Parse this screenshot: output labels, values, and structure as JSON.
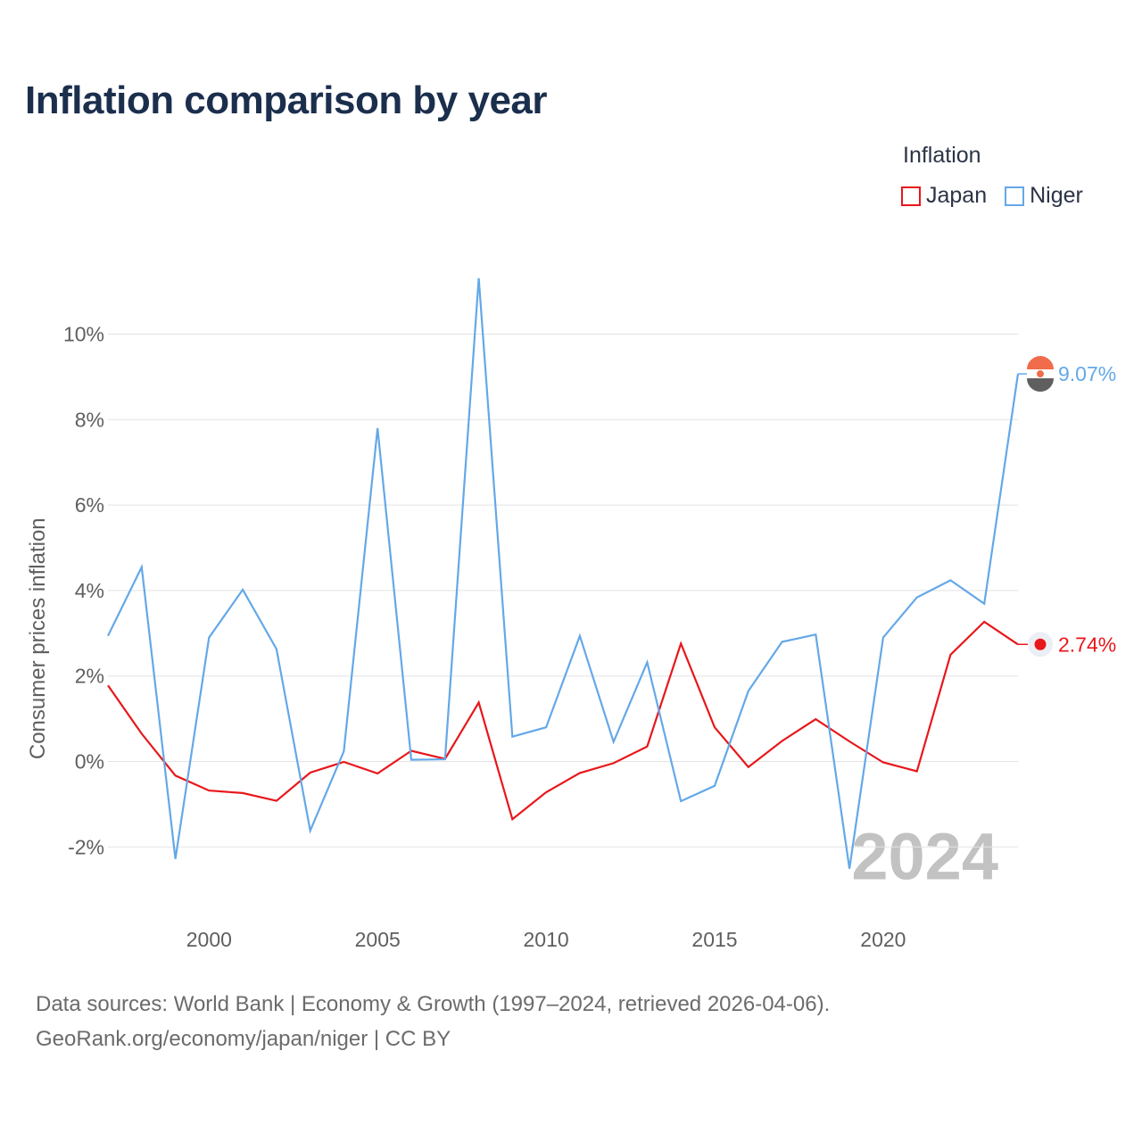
{
  "title": "Inflation comparison by year",
  "legend": {
    "title": "Inflation",
    "items": [
      {
        "label": "Japan",
        "color": "#e8171b"
      },
      {
        "label": "Niger",
        "color": "#64a8e8"
      }
    ]
  },
  "footer": {
    "line1": "Data sources: World Bank | Economy & Growth (1997–2024, retrieved 2026-04-06).",
    "line2": "GeoRank.org/economy/japan/niger | CC BY"
  },
  "chart_data": {
    "type": "line",
    "title": "Inflation comparison by year",
    "xlabel": "",
    "ylabel": "Consumer prices inflation",
    "x": [
      1997,
      1998,
      1999,
      2000,
      2001,
      2002,
      2003,
      2004,
      2005,
      2006,
      2007,
      2008,
      2009,
      2010,
      2011,
      2012,
      2013,
      2014,
      2015,
      2016,
      2017,
      2018,
      2019,
      2020,
      2021,
      2022,
      2023,
      2024
    ],
    "xlim": [
      1997,
      2024
    ],
    "ylim": [
      -3.2,
      12
    ],
    "x_ticks": [
      2000,
      2005,
      2010,
      2015,
      2020
    ],
    "x_tick_labels": [
      "2000",
      "2005",
      "2010",
      "2015",
      "2020"
    ],
    "y_ticks": [
      -2,
      0,
      2,
      4,
      6,
      8,
      10
    ],
    "y_tick_labels": [
      "-2%",
      "0%",
      "2%",
      "4%",
      "6%",
      "8%",
      "10%"
    ],
    "grid": true,
    "watermark_year": "2024",
    "series": [
      {
        "name": "Japan",
        "color": "#e8171b",
        "values": [
          1.78,
          0.65,
          -0.33,
          -0.68,
          -0.74,
          -0.92,
          -0.26,
          -0.01,
          -0.28,
          0.25,
          0.06,
          1.38,
          -1.35,
          -0.72,
          -0.27,
          -0.04,
          0.35,
          2.76,
          0.8,
          -0.13,
          0.48,
          0.99,
          0.47,
          -0.02,
          -0.23,
          2.5,
          3.27,
          2.74
        ],
        "end_label": "2.74%"
      },
      {
        "name": "Niger",
        "color": "#64a8e8",
        "values": [
          2.94,
          4.55,
          -2.28,
          2.9,
          4.02,
          2.63,
          -1.62,
          0.24,
          7.8,
          0.04,
          0.05,
          11.31,
          0.58,
          0.8,
          2.94,
          0.46,
          2.32,
          -0.93,
          -0.57,
          1.65,
          2.8,
          2.97,
          -2.51,
          2.9,
          3.84,
          4.24,
          3.69,
          9.07
        ],
        "end_label": "9.07%"
      }
    ]
  }
}
